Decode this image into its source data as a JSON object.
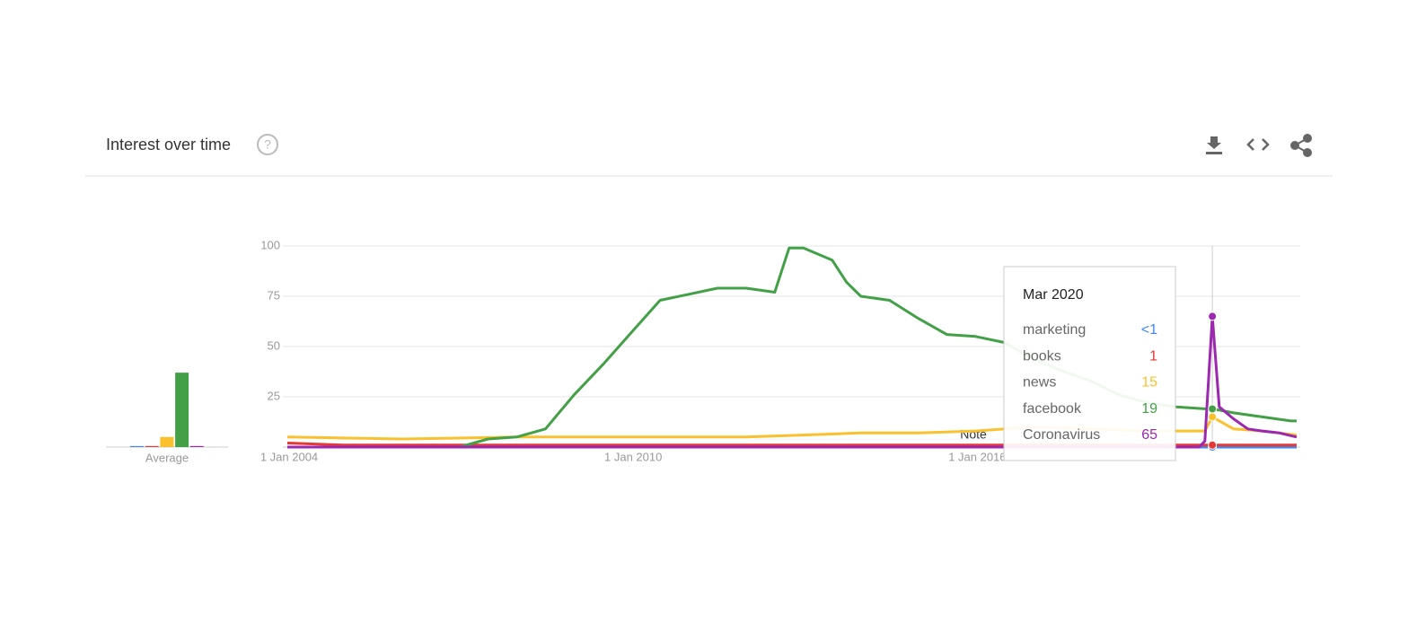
{
  "header": {
    "title": "Interest over time"
  },
  "chart_data": {
    "type": "line",
    "xlim": [
      2004,
      2021.6
    ],
    "xticks": [
      {
        "value": 2004,
        "label": "1 Jan 2004"
      },
      {
        "value": 2010,
        "label": "1 Jan 2010"
      },
      {
        "value": 2016,
        "label": "1 Jan 2016"
      }
    ],
    "ylim": [
      0,
      100
    ],
    "yticks": [
      25,
      50,
      75,
      100
    ],
    "grid": true,
    "series": [
      {
        "name": "marketing",
        "color": "#4285f4",
        "x": [
          2004,
          2021.6
        ],
        "values": [
          0,
          0
        ]
      },
      {
        "name": "books",
        "color": "#e53935",
        "x": [
          2004,
          2005,
          2010,
          2015,
          2020.13,
          2021.6
        ],
        "values": [
          2,
          1,
          1,
          1,
          1,
          1
        ]
      },
      {
        "name": "news",
        "color": "#fbc02d",
        "x": [
          2004,
          2006,
          2008,
          2010,
          2012,
          2013,
          2014,
          2015,
          2016,
          2017,
          2018,
          2019,
          2020,
          2020.13,
          2020.5,
          2021,
          2021.6
        ],
        "values": [
          5,
          4,
          5,
          5,
          5,
          6,
          7,
          7,
          8,
          10,
          9,
          8,
          8,
          15,
          9,
          8,
          6
        ]
      },
      {
        "name": "facebook",
        "color": "#43a047",
        "x": [
          2004,
          2007,
          2007.5,
          2008,
          2008.5,
          2009,
          2009.5,
          2010,
          2010.5,
          2011,
          2011.5,
          2012,
          2012.5,
          2012.75,
          2013,
          2013.5,
          2013.75,
          2014,
          2014.5,
          2015,
          2015.5,
          2016,
          2016.5,
          2017,
          2017.5,
          2018,
          2018.5,
          2019,
          2019.5,
          2020,
          2020.13,
          2020.5,
          2021,
          2021.5,
          2021.6
        ],
        "values": [
          0,
          0,
          4,
          5,
          9,
          26,
          41,
          57,
          73,
          76,
          79,
          79,
          77,
          99,
          99,
          93,
          82,
          75,
          73,
          64,
          56,
          55,
          52,
          44,
          38,
          33,
          26,
          22,
          20,
          19,
          19,
          17,
          15,
          13,
          13
        ]
      },
      {
        "name": "Coronavirus",
        "color": "#9c27b0",
        "x": [
          2004,
          2019.9,
          2020.0,
          2020.13,
          2020.25,
          2020.5,
          2020.75,
          2021,
          2021.3,
          2021.6
        ],
        "values": [
          0,
          0,
          3,
          65,
          20,
          14,
          9,
          8,
          7,
          5
        ]
      }
    ],
    "average": {
      "label": "Average",
      "values": [
        0.5,
        0.5,
        5,
        37,
        0.5
      ]
    },
    "note": "Note",
    "tooltip": {
      "title": "Mar 2020",
      "x": 2020.13,
      "values": [
        0,
        1,
        15,
        19,
        65
      ],
      "value_labels": [
        "<1",
        "1",
        "15",
        "19",
        "65"
      ]
    }
  }
}
